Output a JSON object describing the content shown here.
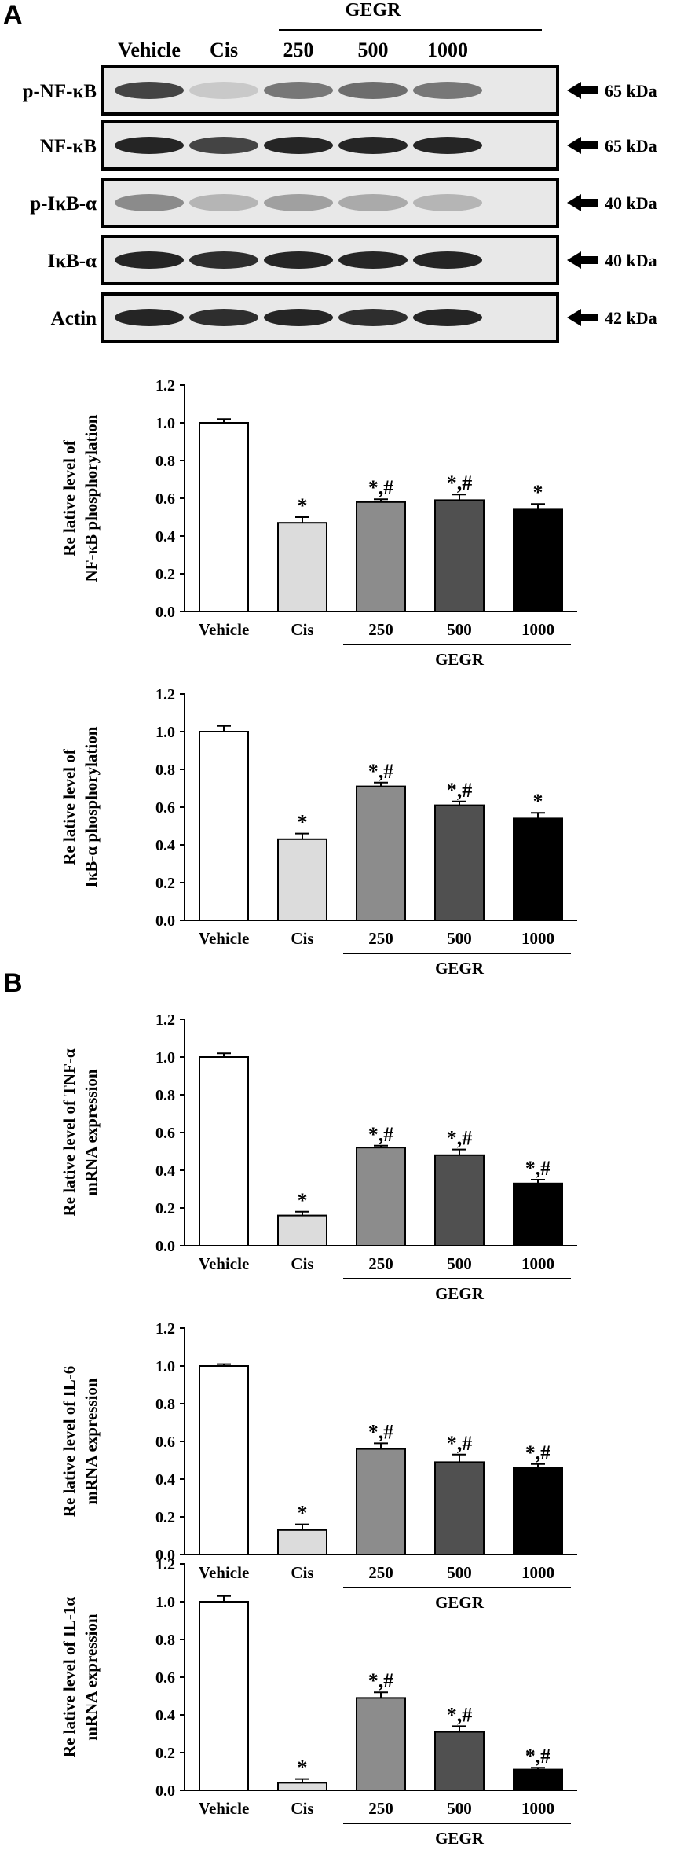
{
  "panels": {
    "a": "A",
    "b": "B"
  },
  "blot": {
    "group_label": "GEGR",
    "lanes": [
      "Vehicle",
      "Cis",
      "250",
      "500",
      "1000"
    ],
    "rows": [
      {
        "name": "p-NF-κB",
        "size": "65 kDa",
        "intensity": [
          0.8,
          0.15,
          0.55,
          0.6,
          0.55
        ]
      },
      {
        "name": "NF-κB",
        "size": "65 kDa",
        "intensity": [
          0.95,
          0.8,
          0.95,
          0.95,
          0.95
        ]
      },
      {
        "name": "p-IκB-α",
        "size": "40 kDa",
        "intensity": [
          0.45,
          0.25,
          0.35,
          0.3,
          0.25
        ]
      },
      {
        "name": "IκB-α",
        "size": "40 kDa",
        "intensity": [
          0.95,
          0.9,
          0.95,
          0.95,
          0.95
        ]
      },
      {
        "name": "Actin",
        "size": "42 kDa",
        "intensity": [
          0.95,
          0.9,
          0.95,
          0.9,
          0.95
        ]
      }
    ]
  },
  "chart_data": [
    {
      "type": "bar",
      "ylabel_lines": [
        "Re lative level of",
        "NF-κB phosphorylation"
      ],
      "categories": [
        "Vehicle",
        "Cis",
        "250",
        "500",
        "1000"
      ],
      "group_label": "GEGR",
      "values": [
        1.0,
        0.47,
        0.58,
        0.59,
        0.54
      ],
      "errors": [
        0.02,
        0.03,
        0.015,
        0.03,
        0.03
      ],
      "annotations": [
        "",
        "*",
        "*,#",
        "*,#",
        "*"
      ],
      "ylim": [
        0,
        1.2
      ],
      "yticks": [
        "0.0",
        "0.2",
        "0.4",
        "0.6",
        "0.8",
        "1.0",
        "1.2"
      ]
    },
    {
      "type": "bar",
      "ylabel_lines": [
        "Re lative level of",
        "IκB-α phosphorylation"
      ],
      "categories": [
        "Vehicle",
        "Cis",
        "250",
        "500",
        "1000"
      ],
      "group_label": "GEGR",
      "values": [
        1.0,
        0.43,
        0.71,
        0.61,
        0.54
      ],
      "errors": [
        0.03,
        0.03,
        0.02,
        0.02,
        0.03
      ],
      "annotations": [
        "",
        "*",
        "*,#",
        "*,#",
        "*"
      ],
      "ylim": [
        0,
        1.2
      ],
      "yticks": [
        "0.0",
        "0.2",
        "0.4",
        "0.6",
        "0.8",
        "1.0",
        "1.2"
      ]
    },
    {
      "type": "bar",
      "ylabel_lines": [
        "Re lative level of TNF-α",
        "mRNA expression"
      ],
      "categories": [
        "Vehicle",
        "Cis",
        "250",
        "500",
        "1000"
      ],
      "group_label": "GEGR",
      "values": [
        1.0,
        0.16,
        0.52,
        0.48,
        0.33
      ],
      "errors": [
        0.02,
        0.02,
        0.01,
        0.03,
        0.02
      ],
      "annotations": [
        "",
        "*",
        "*,#",
        "*,#",
        "*,#"
      ],
      "ylim": [
        0,
        1.2
      ],
      "yticks": [
        "0.0",
        "0.2",
        "0.4",
        "0.6",
        "0.8",
        "1.0",
        "1.2"
      ]
    },
    {
      "type": "bar",
      "ylabel_lines": [
        "Re lative level of IL-6",
        "mRNA expression"
      ],
      "categories": [
        "Vehicle",
        "Cis",
        "250",
        "500",
        "1000"
      ],
      "group_label": "GEGR",
      "values": [
        1.0,
        0.13,
        0.56,
        0.49,
        0.46
      ],
      "errors": [
        0.01,
        0.03,
        0.03,
        0.04,
        0.02
      ],
      "annotations": [
        "",
        "*",
        "*,#",
        "*,#",
        "*,#"
      ],
      "ylim": [
        0,
        1.2
      ],
      "yticks": [
        "0.0",
        "0.2",
        "0.4",
        "0.6",
        "0.8",
        "1.0",
        "1.2"
      ]
    },
    {
      "type": "bar",
      "ylabel_lines": [
        "Re lative level of IL-1α",
        "mRNA expression"
      ],
      "categories": [
        "Vehicle",
        "Cis",
        "250",
        "500",
        "1000"
      ],
      "group_label": "GEGR",
      "values": [
        1.0,
        0.04,
        0.49,
        0.31,
        0.11
      ],
      "errors": [
        0.03,
        0.02,
        0.03,
        0.03,
        0.01
      ],
      "annotations": [
        "",
        "*",
        "*,#",
        "*,#",
        "*,#"
      ],
      "ylim": [
        0,
        1.2
      ],
      "yticks": [
        "0.0",
        "0.2",
        "0.4",
        "0.6",
        "0.8",
        "1.0",
        "1.2"
      ]
    }
  ],
  "colors": {
    "bars": [
      "#ffffff",
      "#dcdcdc",
      "#8c8c8c",
      "#505050",
      "#000000"
    ],
    "axis": "#000000",
    "blot_bg": "#e8e8e8",
    "band": "#1a1a1a"
  }
}
